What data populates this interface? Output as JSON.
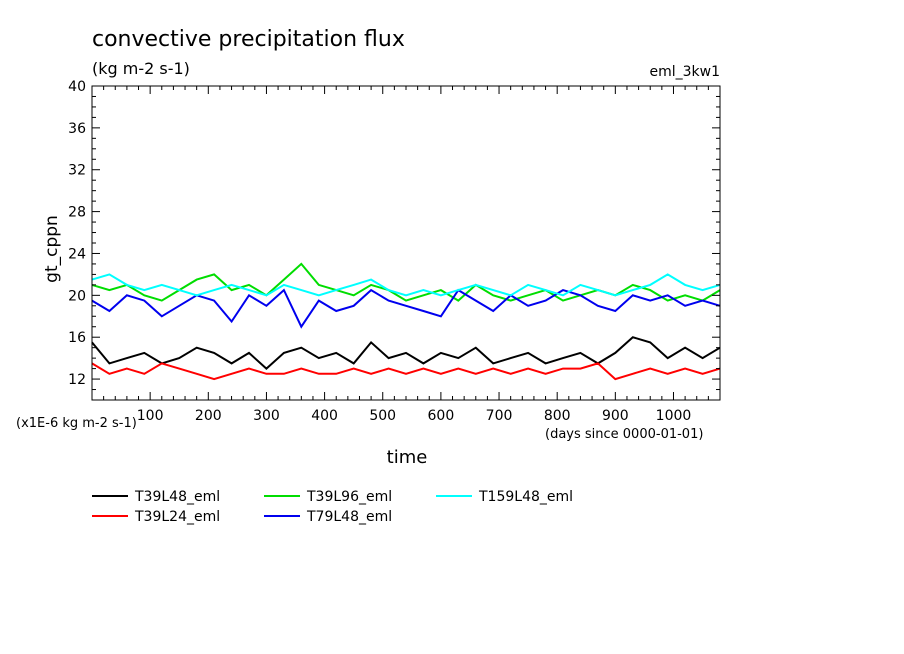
{
  "chart_data": {
    "type": "line",
    "title": "convective precipitation flux",
    "subtitle": "(kg m-2 s-1)",
    "experiment": "eml_3kw1",
    "ylabel": "gt_cppn",
    "xlabel": "time",
    "y_units_note": "(x1E-6 kg m-2 s-1)",
    "x_units_note": "(days since 0000-01-01)",
    "xlim": [
      0,
      1080
    ],
    "ylim": [
      10,
      40
    ],
    "x_ticks": [
      100,
      200,
      300,
      400,
      500,
      600,
      700,
      800,
      900,
      1000
    ],
    "x_tick_labels": [
      "100",
      "200",
      "300",
      "400",
      "500",
      "600",
      "700",
      "800",
      "900",
      "1000"
    ],
    "y_ticks": [
      12,
      16,
      20,
      24,
      28,
      32,
      36,
      40
    ],
    "y_tick_labels": [
      "12",
      "16",
      "20",
      "24",
      "28",
      "32",
      "36",
      "40"
    ],
    "grid": false,
    "legend_position": "bottom",
    "series": [
      {
        "name": "T39L48_eml",
        "color": "#000000",
        "x": [
          0,
          30,
          60,
          90,
          120,
          150,
          180,
          210,
          240,
          270,
          300,
          330,
          360,
          390,
          420,
          450,
          480,
          510,
          540,
          570,
          600,
          630,
          660,
          690,
          720,
          750,
          780,
          810,
          840,
          870,
          900,
          930,
          960,
          990,
          1020,
          1050,
          1080
        ],
        "values": [
          15.5,
          13.5,
          14,
          14.5,
          13.5,
          14,
          15,
          14.5,
          13.5,
          14.5,
          13,
          14.5,
          15,
          14,
          14.5,
          13.5,
          15.5,
          14,
          14.5,
          13.5,
          14.5,
          14,
          15,
          13.5,
          14,
          14.5,
          13.5,
          14,
          14.5,
          13.5,
          14.5,
          16,
          15.5,
          14,
          15,
          14,
          15
        ]
      },
      {
        "name": "T39L24_eml",
        "color": "#ff0000",
        "x": [
          0,
          30,
          60,
          90,
          120,
          150,
          180,
          210,
          240,
          270,
          300,
          330,
          360,
          390,
          420,
          450,
          480,
          510,
          540,
          570,
          600,
          630,
          660,
          690,
          720,
          750,
          780,
          810,
          840,
          870,
          900,
          930,
          960,
          990,
          1020,
          1050,
          1080
        ],
        "values": [
          13.5,
          12.5,
          13,
          12.5,
          13.5,
          13,
          12.5,
          12,
          12.5,
          13,
          12.5,
          12.5,
          13,
          12.5,
          12.5,
          13,
          12.5,
          13,
          12.5,
          13,
          12.5,
          13,
          12.5,
          13,
          12.5,
          13,
          12.5,
          13,
          13,
          13.5,
          12,
          12.5,
          13,
          12.5,
          13,
          12.5,
          13
        ]
      },
      {
        "name": "T39L96_eml",
        "color": "#00dd00",
        "x": [
          0,
          30,
          60,
          90,
          120,
          150,
          180,
          210,
          240,
          270,
          300,
          330,
          360,
          390,
          420,
          450,
          480,
          510,
          540,
          570,
          600,
          630,
          660,
          690,
          720,
          750,
          780,
          810,
          840,
          870,
          900,
          930,
          960,
          990,
          1020,
          1050,
          1080
        ],
        "values": [
          21,
          20.5,
          21,
          20,
          19.5,
          20.5,
          21.5,
          22,
          20.5,
          21,
          20,
          21.5,
          23,
          21,
          20.5,
          20,
          21,
          20.5,
          19.5,
          20,
          20.5,
          19.5,
          21,
          20,
          19.5,
          20,
          20.5,
          19.5,
          20,
          20.5,
          20,
          21,
          20.5,
          19.5,
          20,
          19.5,
          20.5
        ]
      },
      {
        "name": "T79L48_eml",
        "color": "#0000ee",
        "x": [
          0,
          30,
          60,
          90,
          120,
          150,
          180,
          210,
          240,
          270,
          300,
          330,
          360,
          390,
          420,
          450,
          480,
          510,
          540,
          570,
          600,
          630,
          660,
          690,
          720,
          750,
          780,
          810,
          840,
          870,
          900,
          930,
          960,
          990,
          1020,
          1050,
          1080
        ],
        "values": [
          19.5,
          18.5,
          20,
          19.5,
          18,
          19,
          20,
          19.5,
          17.5,
          20,
          19,
          20.5,
          17,
          19.5,
          18.5,
          19,
          20.5,
          19.5,
          19,
          18.5,
          18,
          20.5,
          19.5,
          18.5,
          20,
          19,
          19.5,
          20.5,
          20,
          19,
          18.5,
          20,
          19.5,
          20,
          19,
          19.5,
          19
        ]
      },
      {
        "name": "T159L48_eml",
        "color": "#00ffff",
        "x": [
          0,
          30,
          60,
          90,
          120,
          150,
          180,
          210,
          240,
          270,
          300,
          330,
          360,
          390,
          420,
          450,
          480,
          510,
          540,
          570,
          600,
          630,
          660,
          690,
          720,
          750,
          780,
          810,
          840,
          870,
          900,
          930,
          960,
          990,
          1020,
          1050,
          1080
        ],
        "values": [
          21.5,
          22,
          21,
          20.5,
          21,
          20.5,
          20,
          20.5,
          21,
          20.5,
          20,
          21,
          20.5,
          20,
          20.5,
          21,
          21.5,
          20.5,
          20,
          20.5,
          20,
          20.5,
          21,
          20.5,
          20,
          21,
          20.5,
          20,
          21,
          20.5,
          20,
          20.5,
          21,
          22,
          21,
          20.5,
          21
        ]
      }
    ]
  }
}
